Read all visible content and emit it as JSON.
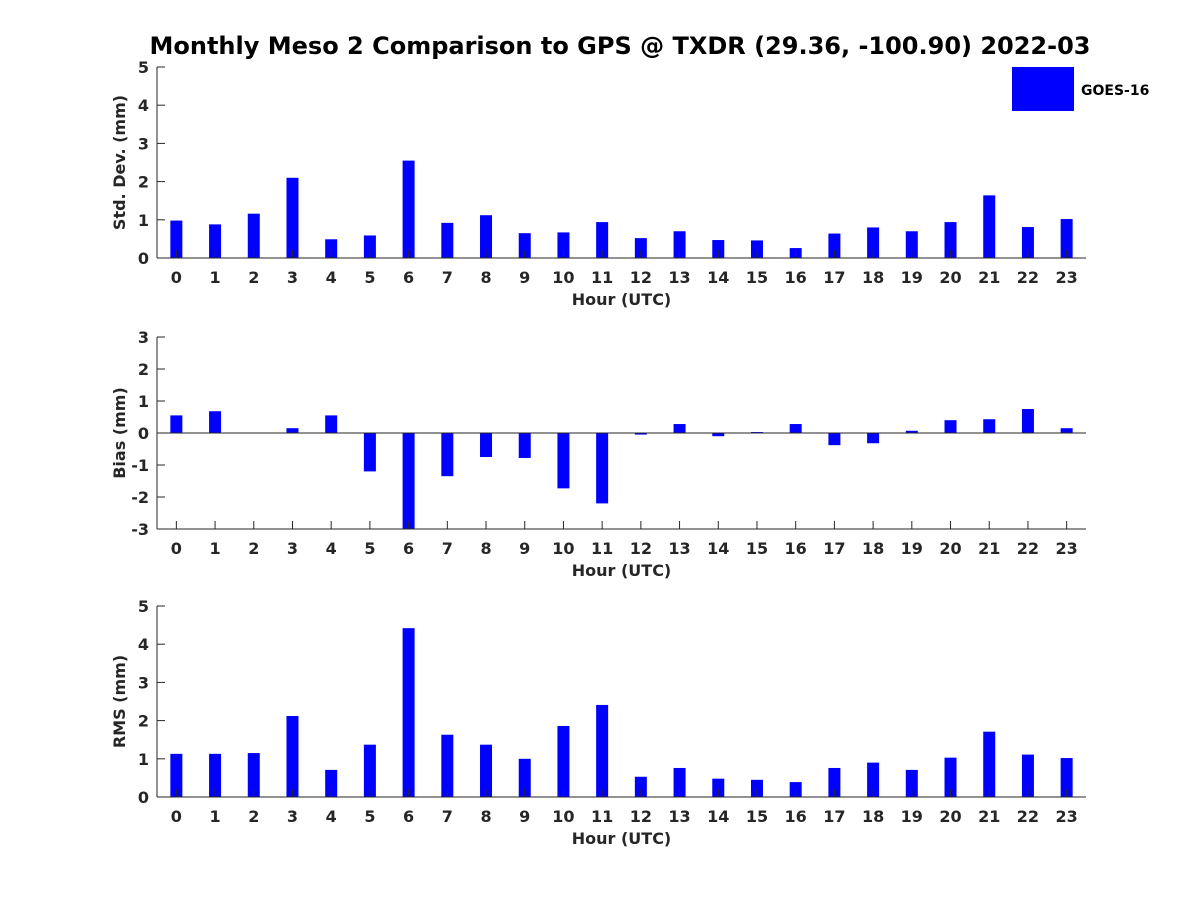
{
  "chart_data": {
    "title": "Monthly Meso 2 Comparison to GPS @ TXDR (29.36, -100.90) 2022-03",
    "legend": {
      "label": "GOES-16",
      "color": "#0000ff",
      "placement": "top-right"
    },
    "bar_color": "#0000ff",
    "panels": [
      {
        "type": "bar",
        "ylabel": "Std. Dev. (mm)",
        "xlabel": "Hour (UTC)",
        "ylim": [
          0,
          5
        ],
        "yticks": [
          "0",
          "1",
          "2",
          "3",
          "4",
          "5"
        ],
        "categories": [
          "0",
          "1",
          "2",
          "3",
          "4",
          "5",
          "6",
          "7",
          "8",
          "9",
          "10",
          "11",
          "12",
          "13",
          "14",
          "15",
          "16",
          "17",
          "18",
          "19",
          "20",
          "21",
          "22",
          "23"
        ],
        "values": [
          0.98,
          0.88,
          1.16,
          2.1,
          0.49,
          0.59,
          2.55,
          0.92,
          1.12,
          0.65,
          0.67,
          0.94,
          0.52,
          0.7,
          0.47,
          0.46,
          0.26,
          0.64,
          0.8,
          0.7,
          0.94,
          1.64,
          0.81,
          1.02
        ]
      },
      {
        "type": "bar",
        "ylabel": "Bias (mm)",
        "xlabel": "Hour (UTC)",
        "ylim": [
          -3,
          3
        ],
        "yticks": [
          "-3",
          "-2",
          "-1",
          "0",
          "1",
          "2",
          "3"
        ],
        "categories": [
          "0",
          "1",
          "2",
          "3",
          "4",
          "5",
          "6",
          "7",
          "8",
          "9",
          "10",
          "11",
          "12",
          "13",
          "14",
          "15",
          "16",
          "17",
          "18",
          "19",
          "20",
          "21",
          "22",
          "23"
        ],
        "values": [
          0.55,
          0.68,
          0.0,
          0.15,
          0.55,
          -1.2,
          -3.0,
          -1.35,
          -0.75,
          -0.78,
          -1.73,
          -2.2,
          -0.05,
          0.28,
          -0.1,
          0.03,
          0.28,
          -0.38,
          -0.32,
          0.07,
          0.4,
          0.43,
          0.75,
          0.15
        ]
      },
      {
        "type": "bar",
        "ylabel": "RMS (mm)",
        "xlabel": "Hour (UTC)",
        "ylim": [
          0,
          5
        ],
        "yticks": [
          "0",
          "1",
          "2",
          "3",
          "4",
          "5"
        ],
        "categories": [
          "0",
          "1",
          "2",
          "3",
          "4",
          "5",
          "6",
          "7",
          "8",
          "9",
          "10",
          "11",
          "12",
          "13",
          "14",
          "15",
          "16",
          "17",
          "18",
          "19",
          "20",
          "21",
          "22",
          "23"
        ],
        "values": [
          1.13,
          1.13,
          1.15,
          2.12,
          0.71,
          1.37,
          4.42,
          1.63,
          1.37,
          1.0,
          1.86,
          2.41,
          0.53,
          0.76,
          0.48,
          0.45,
          0.39,
          0.76,
          0.9,
          0.71,
          1.03,
          1.71,
          1.11,
          1.02
        ]
      }
    ]
  }
}
